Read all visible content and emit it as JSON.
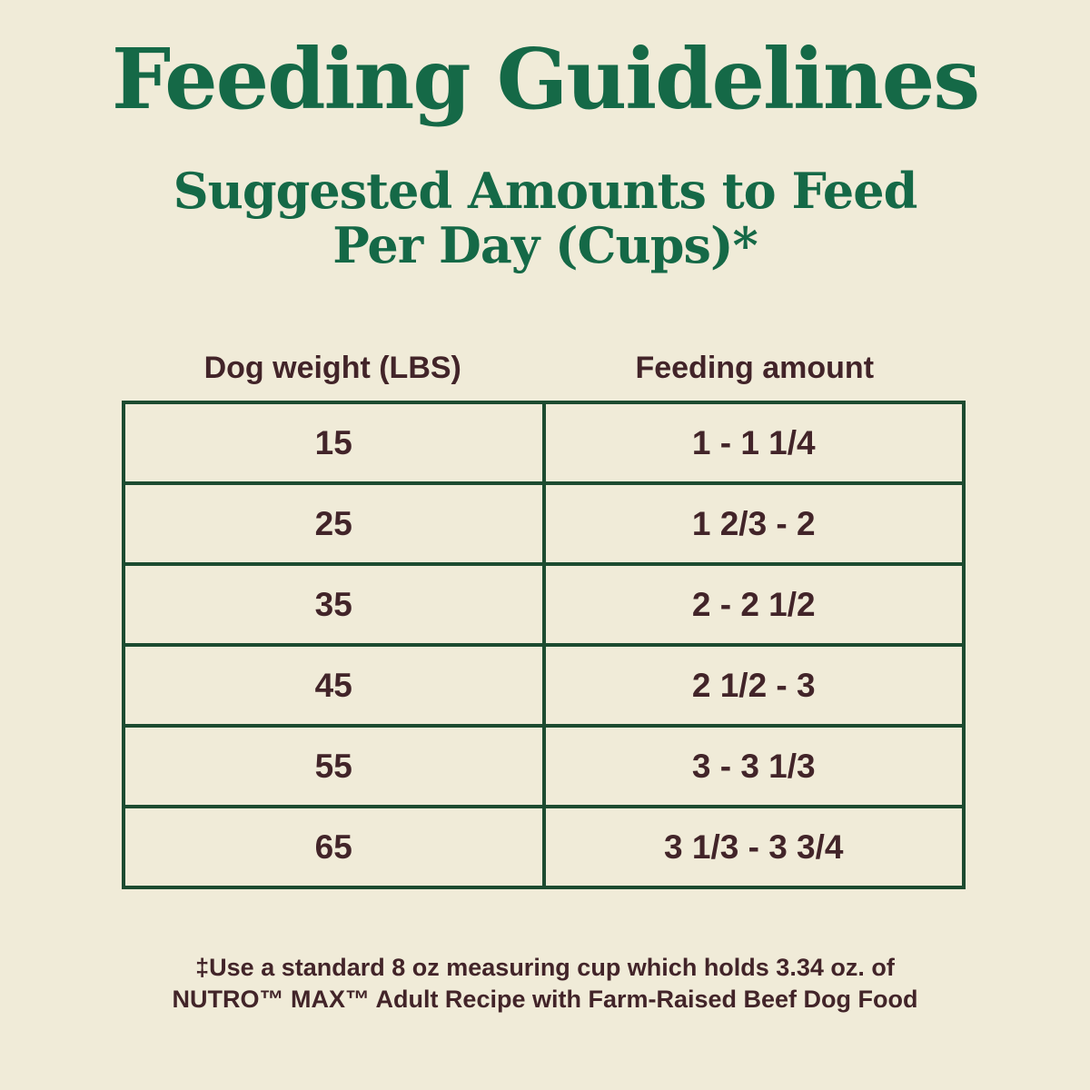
{
  "colors": {
    "background": "#f0ebd8",
    "heading_green": "#156947",
    "table_border_green": "#1c4b30",
    "text_brown": "#422429"
  },
  "header": {
    "title": "Feeding Guidelines",
    "subtitle_line1": "Suggested Amounts to Feed",
    "subtitle_line2": "Per Day (Cups)*"
  },
  "table": {
    "columns": [
      "Dog weight (LBS)",
      "Feeding amount"
    ],
    "rows": [
      {
        "weight": "15",
        "amount": "1 - 1 1/4"
      },
      {
        "weight": "25",
        "amount": "1 2/3 - 2"
      },
      {
        "weight": "35",
        "amount": "2 - 2 1/2"
      },
      {
        "weight": "45",
        "amount": "2 1/2 - 3"
      },
      {
        "weight": "55",
        "amount": "3 - 3 1/3"
      },
      {
        "weight": "65",
        "amount": "3 1/3 - 3 3/4"
      }
    ]
  },
  "footnote": {
    "line1": "‡Use a standard 8 oz measuring cup which holds 3.34 oz. of",
    "line2": "NUTRO™ MAX™ Adult Recipe with Farm-Raised Beef Dog Food"
  }
}
